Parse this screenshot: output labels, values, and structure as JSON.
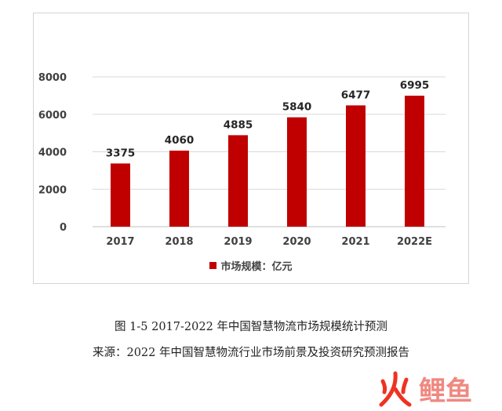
{
  "chart_data": {
    "type": "bar",
    "categories": [
      "2017",
      "2018",
      "2019",
      "2020",
      "2021",
      "2022E"
    ],
    "values": [
      3375,
      4060,
      4885,
      5840,
      6477,
      6995
    ],
    "ylim": [
      0,
      8000
    ],
    "yticks": [
      0,
      2000,
      4000,
      6000,
      8000
    ],
    "grid": true,
    "legend": {
      "position": "bottom",
      "label": "市场规模：亿元"
    },
    "bar_color": "#c00000"
  },
  "caption": {
    "figure_title": "图 1-5 2017-2022 年中国智慧物流市场规模统计预测",
    "source": "来源：2022 年中国智慧物流行业市场前景及投资研究预测报告"
  },
  "watermark": {
    "text": "火鲤鱼",
    "colors": {
      "fire": "#ee3322",
      "carp": "#f08880"
    }
  }
}
